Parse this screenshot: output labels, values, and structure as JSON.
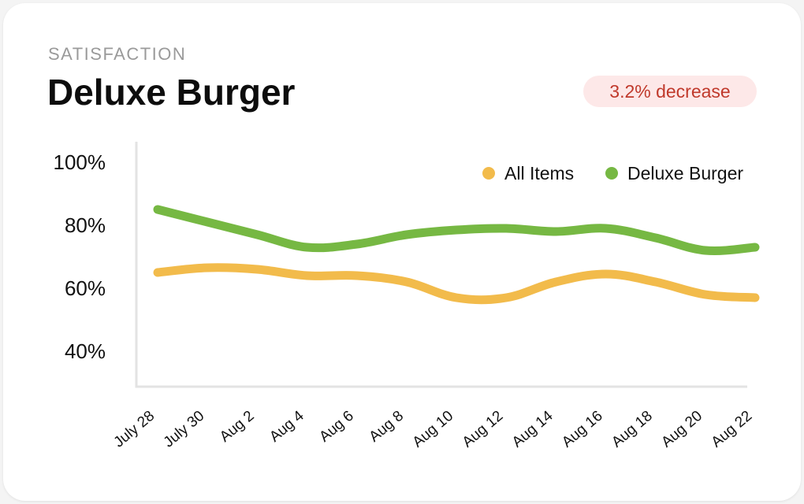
{
  "card": {
    "eyebrow": "SATISFACTION",
    "title": "Deluxe Burger",
    "badge": "3.2% decrease",
    "badge_color": "#c0392b",
    "badge_bg": "#fde8e8"
  },
  "chart_data": {
    "type": "line",
    "title": "Deluxe Burger",
    "xlabel": "",
    "ylabel": "",
    "categories": [
      "July 28",
      "July 30",
      "Aug 2",
      "Aug 4",
      "Aug 6",
      "Aug 8",
      "Aug 10",
      "Aug 12",
      "Aug 14",
      "Aug 16",
      "Aug 18",
      "Aug 20",
      "Aug 22"
    ],
    "y_ticks": [
      "100%",
      "80%",
      "60%",
      "40%"
    ],
    "ylim": [
      40,
      100
    ],
    "legend_position": "top-right",
    "grid": false,
    "series": [
      {
        "name": "All Items",
        "color": "#f2bb4b",
        "values": [
          65,
          66.5,
          66,
          64,
          64,
          62,
          57,
          57,
          62,
          64.5,
          62,
          58,
          57
        ]
      },
      {
        "name": "Deluxe Burger",
        "color": "#76b843",
        "values": [
          85,
          81,
          77,
          73,
          74,
          77,
          78.5,
          79,
          78,
          79,
          76,
          72,
          73
        ]
      }
    ]
  }
}
